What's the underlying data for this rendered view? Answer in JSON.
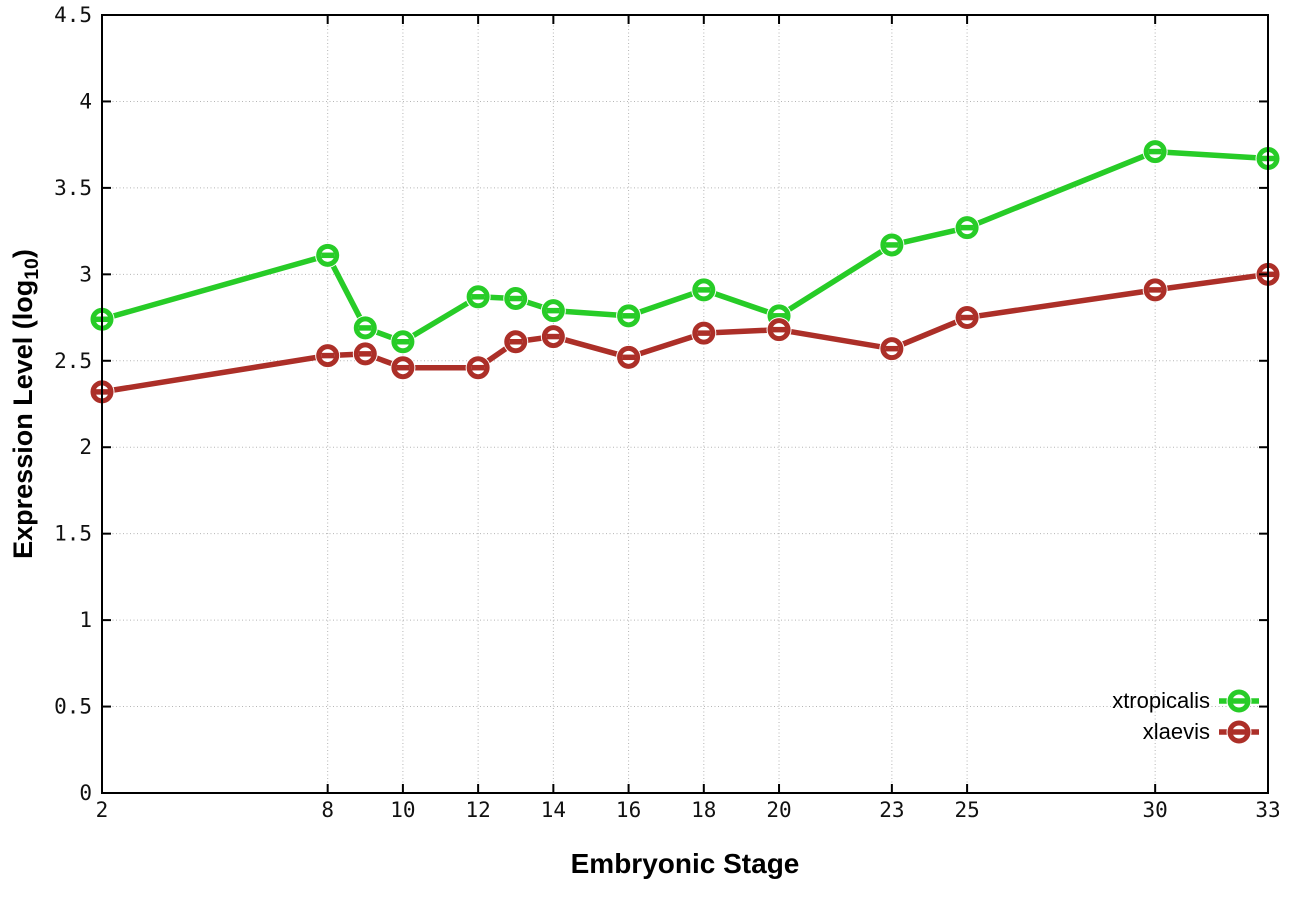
{
  "chart_data": {
    "type": "line",
    "title": "",
    "xlabel": "Embryonic Stage",
    "ylabel": "Expression Level (log10)",
    "ylabel_parts": {
      "prefix": "Expression Level (log",
      "subscript": "10",
      "suffix": ")"
    },
    "xlim": [
      2,
      33
    ],
    "ylim": [
      0,
      4.5
    ],
    "x_ticks": [
      2,
      8,
      10,
      12,
      14,
      16,
      18,
      20,
      23,
      25,
      30,
      33
    ],
    "y_ticks": [
      0,
      0.5,
      1,
      1.5,
      2,
      2.5,
      3,
      3.5,
      4,
      4.5
    ],
    "grid": true,
    "legend_position": "bottom-right",
    "x": [
      2,
      8,
      9,
      10,
      12,
      13,
      14,
      16,
      18,
      20,
      23,
      25,
      30,
      33
    ],
    "series": [
      {
        "name": "xtropicalis",
        "color": "#27cc27",
        "values": [
          2.74,
          3.11,
          2.69,
          2.61,
          2.87,
          2.86,
          2.79,
          2.76,
          2.91,
          2.76,
          3.17,
          3.27,
          3.71,
          3.67
        ]
      },
      {
        "name": "xlaevis",
        "color": "#ac2f28",
        "values": [
          2.32,
          2.53,
          2.54,
          2.46,
          2.46,
          2.61,
          2.64,
          2.52,
          2.66,
          2.68,
          2.57,
          2.75,
          2.91,
          3.0
        ]
      }
    ]
  }
}
